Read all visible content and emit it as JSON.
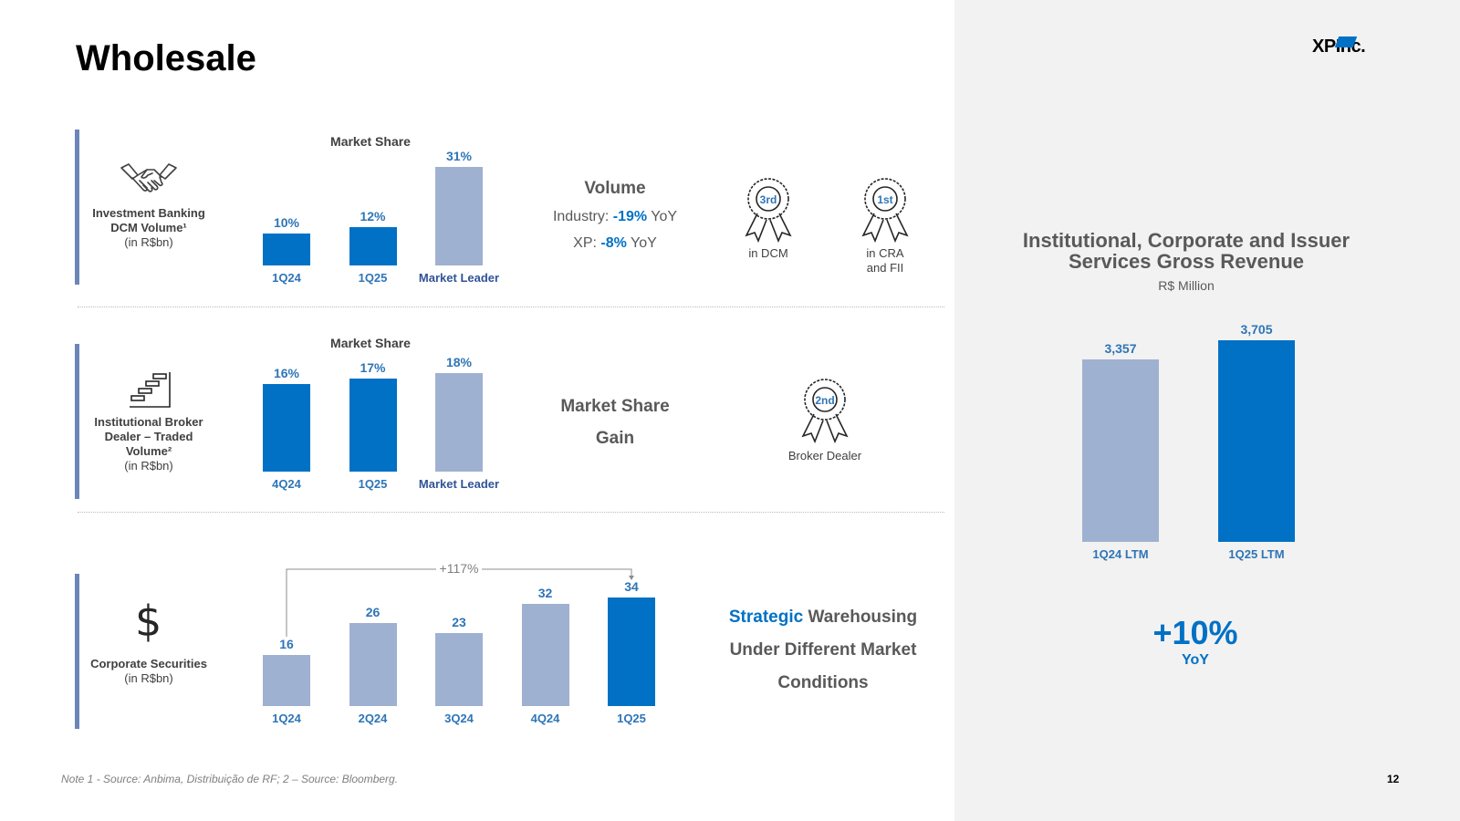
{
  "title": "Wholesale",
  "logo": {
    "left": "XP",
    "right": "Inc."
  },
  "rows": {
    "ib": {
      "label_line1": "Investment Banking",
      "label_line2": "DCM Volume¹",
      "label_unit": "(in R$bn)",
      "chart_title": "Market Share",
      "volume_title": "Volume",
      "industry_label": "Industry:",
      "industry_value": "-19%",
      "industry_suffix": "YoY",
      "xp_label": "XP:",
      "xp_value": "-8%",
      "xp_suffix": "YoY",
      "award1_rank": "3rd",
      "award1_label": "in DCM",
      "award2_rank": "1st",
      "award2_label_line1": "in CRA",
      "award2_label_line2": "and FII"
    },
    "broker": {
      "label_line1": "Institutional Broker",
      "label_line2": "Dealer –  Traded",
      "label_line3": "Volume²",
      "label_unit": "(in R$bn)",
      "chart_title": "Market Share",
      "mid_line1": "Market Share",
      "mid_line2": "Gain",
      "award_rank": "2nd",
      "award_label": "Broker Dealer"
    },
    "securities": {
      "label_line1": "Corporate Securities",
      "label_unit": "(in R$bn)",
      "growth_label": "+117%",
      "mid_highlight": "Strategic",
      "mid_line1_rest": "Warehousing",
      "mid_line2": "Under Different Market",
      "mid_line3": "Conditions"
    }
  },
  "right_panel": {
    "title_line1": "Institutional, Corporate and Issuer",
    "title_line2": "Services Gross Revenue",
    "subtitle": "R$ Million",
    "growth": "+10%",
    "growth_label": "YoY"
  },
  "colors": {
    "primary_blue": "#0071c5",
    "light_blue": "#9fb1d1",
    "navy": "#2f5496",
    "accent_bar": "#6b86b8",
    "panel_bg": "#f2f2f2"
  },
  "chart_data": [
    {
      "type": "bar",
      "title": "Market Share",
      "categories": [
        "1Q24",
        "1Q25",
        "Market Leader"
      ],
      "values": [
        10,
        12,
        31
      ],
      "value_labels": [
        "10%",
        "12%",
        "31%"
      ],
      "unit": "%"
    },
    {
      "type": "bar",
      "title": "Market Share",
      "categories": [
        "4Q24",
        "1Q25",
        "Market Leader"
      ],
      "values": [
        16,
        17,
        18
      ],
      "value_labels": [
        "16%",
        "17%",
        "18%"
      ],
      "unit": "%"
    },
    {
      "type": "bar",
      "categories": [
        "1Q24",
        "2Q24",
        "3Q24",
        "4Q24",
        "1Q25"
      ],
      "values": [
        16,
        26,
        23,
        32,
        34
      ],
      "value_labels": [
        "16",
        "26",
        "23",
        "32",
        "34"
      ]
    },
    {
      "type": "bar",
      "title": "Institutional, Corporate and Issuer Services Gross Revenue",
      "categories": [
        "1Q24 LTM",
        "1Q25 LTM"
      ],
      "values": [
        3357,
        3705
      ],
      "value_labels": [
        "3,357",
        "3,705"
      ]
    }
  ]
}
